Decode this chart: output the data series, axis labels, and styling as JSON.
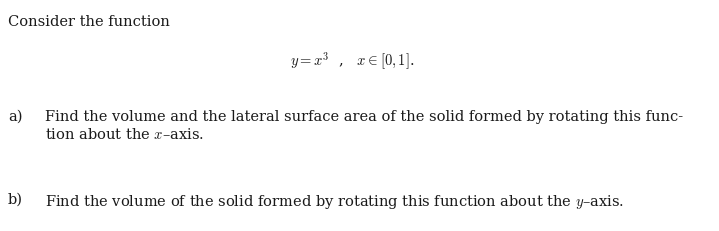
{
  "background_color": "#ffffff",
  "text_color": "#1a1a1a",
  "fontsize": 10.5,
  "consider_text": "Consider the function",
  "formula": "$y = x^3$  ,   $x \\in [0, 1]$.",
  "part_a_label": "a)",
  "part_a_line1": "Find the volume and the lateral surface area of the solid formed by rotating this func-",
  "part_a_line2": "tion about the $x$–axis.",
  "part_b_label": "b)",
  "part_b_line": "Find the volume of the solid formed by rotating this function about the $y$–axis."
}
